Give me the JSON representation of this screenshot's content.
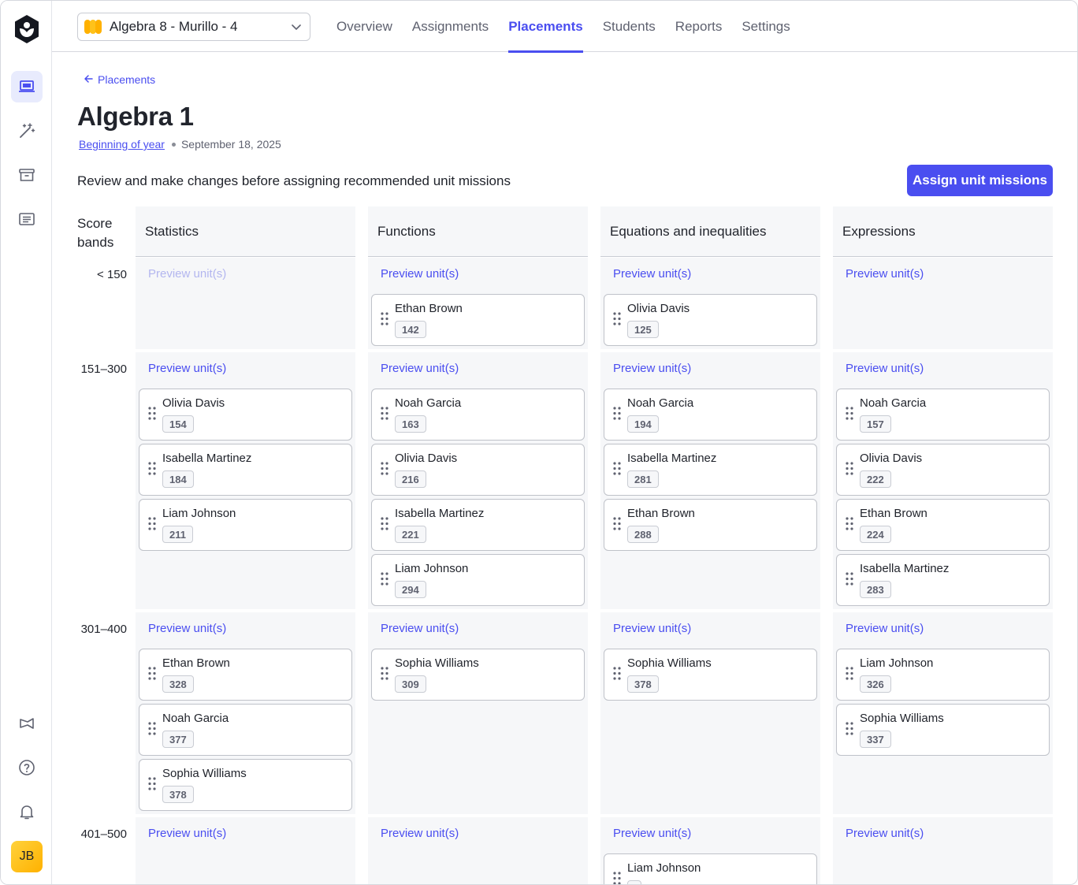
{
  "app": {
    "class_select": "Algebra 8 - Murillo - 4",
    "user_initials": "JB"
  },
  "nav": {
    "tabs": [
      {
        "label": "Overview",
        "active": false
      },
      {
        "label": "Assignments",
        "active": false
      },
      {
        "label": "Placements",
        "active": true
      },
      {
        "label": "Students",
        "active": false
      },
      {
        "label": "Reports",
        "active": false
      },
      {
        "label": "Settings",
        "active": false
      }
    ]
  },
  "rail_icons": [
    "khan-logo-icon",
    "classroom-icon",
    "magic-wand-icon",
    "archive-icon",
    "list-icon",
    "megaphone-icon",
    "help-icon",
    "bell-icon"
  ],
  "page": {
    "back_label": "Placements",
    "title": "Algebra 1",
    "period_link": "Beginning of year",
    "date": "September 18, 2025",
    "intro": "Review and make changes before assigning recommended unit missions",
    "assign_button": "Assign unit missions",
    "bands_header": [
      "Score",
      "bands"
    ],
    "preview_label": "Preview unit(s)"
  },
  "colors": {
    "accent": "#4a4ef0",
    "column_bg": "#f6f7f9",
    "avatar": "#ffc21a"
  },
  "bands": [
    "< 150",
    "151–300",
    "301–400",
    "401–500"
  ],
  "columns": [
    {
      "name": "Statistics",
      "bands": [
        {
          "preview_disabled": true,
          "students": []
        },
        {
          "preview_disabled": false,
          "students": [
            {
              "name": "Olivia Davis",
              "score": "154"
            },
            {
              "name": "Isabella Martinez",
              "score": "184"
            },
            {
              "name": "Liam Johnson",
              "score": "211"
            }
          ]
        },
        {
          "preview_disabled": false,
          "students": [
            {
              "name": "Ethan Brown",
              "score": "328"
            },
            {
              "name": "Noah Garcia",
              "score": "377"
            },
            {
              "name": "Sophia Williams",
              "score": "378"
            }
          ]
        },
        {
          "preview_disabled": false,
          "students": []
        }
      ]
    },
    {
      "name": "Functions",
      "bands": [
        {
          "preview_disabled": false,
          "students": [
            {
              "name": "Ethan Brown",
              "score": "142"
            }
          ]
        },
        {
          "preview_disabled": false,
          "students": [
            {
              "name": "Noah Garcia",
              "score": "163"
            },
            {
              "name": "Olivia Davis",
              "score": "216"
            },
            {
              "name": "Isabella Martinez",
              "score": "221"
            },
            {
              "name": "Liam Johnson",
              "score": "294"
            }
          ]
        },
        {
          "preview_disabled": false,
          "students": [
            {
              "name": "Sophia Williams",
              "score": "309"
            }
          ]
        },
        {
          "preview_disabled": false,
          "students": []
        }
      ]
    },
    {
      "name": "Equations and inequalities",
      "bands": [
        {
          "preview_disabled": false,
          "students": [
            {
              "name": "Olivia Davis",
              "score": "125"
            }
          ]
        },
        {
          "preview_disabled": false,
          "students": [
            {
              "name": "Noah Garcia",
              "score": "194"
            },
            {
              "name": "Isabella Martinez",
              "score": "281"
            },
            {
              "name": "Ethan Brown",
              "score": "288"
            }
          ]
        },
        {
          "preview_disabled": false,
          "students": [
            {
              "name": "Sophia Williams",
              "score": "378"
            }
          ]
        },
        {
          "preview_disabled": false,
          "students": [
            {
              "name": "Liam Johnson",
              "score": ""
            }
          ]
        }
      ]
    },
    {
      "name": "Expressions",
      "bands": [
        {
          "preview_disabled": false,
          "students": []
        },
        {
          "preview_disabled": false,
          "students": [
            {
              "name": "Noah Garcia",
              "score": "157"
            },
            {
              "name": "Olivia Davis",
              "score": "222"
            },
            {
              "name": "Ethan Brown",
              "score": "224"
            },
            {
              "name": "Isabella Martinez",
              "score": "283"
            }
          ]
        },
        {
          "preview_disabled": false,
          "students": [
            {
              "name": "Liam Johnson",
              "score": "326"
            },
            {
              "name": "Sophia Williams",
              "score": "337"
            }
          ]
        },
        {
          "preview_disabled": false,
          "students": []
        }
      ]
    }
  ]
}
